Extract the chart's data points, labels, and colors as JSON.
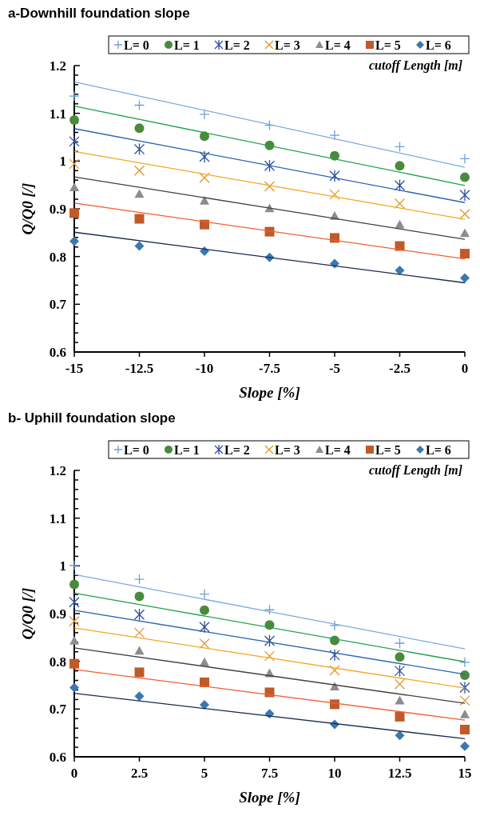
{
  "chart_data": [
    {
      "type": "scatter",
      "title": "a-Downhill foundation slope",
      "xlabel": "Slope [%]",
      "ylabel": "Q/Q0 [/]",
      "legend_title": "cutoff Length [m]",
      "legend": "top",
      "grid": false,
      "x": [
        -15,
        -12.5,
        -10,
        -7.5,
        -5,
        -2.5,
        0
      ],
      "xlim": [
        -15,
        0
      ],
      "xticks": [
        -15,
        -12.5,
        -10,
        -7.5,
        -5,
        -2.5,
        0
      ],
      "ylim": [
        0.6,
        1.2
      ],
      "yticks": [
        0.6,
        {
          "value": 0.62,
          "label": null
        },
        {
          "value": 0.64,
          "label": null
        },
        {
          "value": 0.66,
          "label": null
        },
        {
          "value": 0.68,
          "label": null
        },
        0.7,
        {
          "value": 0.72,
          "label": null
        },
        {
          "value": 0.74,
          "label": null
        },
        {
          "value": 0.76,
          "label": null
        },
        {
          "value": 0.78,
          "label": null
        },
        0.8,
        {
          "value": 0.82,
          "label": null
        },
        {
          "value": 0.84,
          "label": null
        },
        {
          "value": 0.86,
          "label": null
        },
        {
          "value": 0.88,
          "label": null
        },
        0.9,
        {
          "value": 0.92,
          "label": null
        },
        {
          "value": 0.94,
          "label": null
        },
        {
          "value": 0.96,
          "label": null
        },
        {
          "value": 0.98,
          "label": null
        },
        1,
        {
          "value": 1.02,
          "label": null
        },
        {
          "value": 1.04,
          "label": null
        },
        {
          "value": 1.06,
          "label": null
        },
        {
          "value": 1.08,
          "label": null
        },
        1.1,
        {
          "value": 1.12,
          "label": null
        },
        {
          "value": 1.14,
          "label": null
        },
        {
          "value": 1.16,
          "label": null
        },
        {
          "value": 1.18,
          "label": null
        },
        1.2
      ],
      "series": [
        {
          "name": "L= 0",
          "color": "#6fa0d8",
          "marker": "cross",
          "values": [
            1.136,
            1.117,
            1.098,
            1.075,
            1.054,
            1.03,
            1.005
          ]
        },
        {
          "name": "L= 1",
          "color": "#4a8a3a",
          "marker": "circle",
          "values": [
            1.086,
            1.069,
            1.052,
            1.033,
            1.011,
            0.99,
            0.966
          ]
        },
        {
          "name": "L= 2",
          "color": "#2e4f9a",
          "marker": "cross",
          "values": [
            1.041,
            1.025,
            1.009,
            0.99,
            0.969,
            0.949,
            0.929
          ]
        },
        {
          "name": "L= 3",
          "color": "#e0962a",
          "marker": "cross",
          "values": [
            0.994,
            0.98,
            0.965,
            0.947,
            0.93,
            0.911,
            0.889
          ]
        },
        {
          "name": "L= 4",
          "color": "#8c8c8c",
          "marker": "triangle",
          "values": [
            0.945,
            0.931,
            0.917,
            0.901,
            0.885,
            0.867,
            0.849
          ]
        },
        {
          "name": "L= 5",
          "color": "#c05a28",
          "marker": "square",
          "values": [
            0.891,
            0.879,
            0.867,
            0.852,
            0.839,
            0.822,
            0.806
          ]
        },
        {
          "name": "L= 6",
          "color": "#3a78b0",
          "marker": "diamond",
          "values": [
            0.832,
            0.822,
            0.811,
            0.798,
            0.785,
            0.771,
            0.755
          ]
        },
        {
          "type": "line",
          "color": "#7aaae0",
          "line_style": "solid",
          "x": [
            -15,
            0
          ],
          "values": [
            1.166,
            0.987
          ]
        },
        {
          "type": "line",
          "color": "#22a050",
          "line_style": "solid",
          "x": [
            -15,
            0
          ],
          "values": [
            1.115,
            0.949
          ]
        },
        {
          "type": "line",
          "color": "#2a64b0",
          "line_style": "solid",
          "x": [
            -15,
            0
          ],
          "values": [
            1.068,
            0.913
          ]
        },
        {
          "type": "line",
          "color": "#f5a623",
          "line_style": "solid",
          "x": [
            -15,
            0
          ],
          "values": [
            1.02,
            0.878
          ]
        },
        {
          "type": "line",
          "color": "#404040",
          "line_style": "solid",
          "x": [
            -15,
            0
          ],
          "values": [
            0.967,
            0.836
          ]
        },
        {
          "type": "line",
          "color": "#f06030",
          "line_style": "solid",
          "x": [
            -15,
            0
          ],
          "values": [
            0.912,
            0.795
          ]
        },
        {
          "type": "line",
          "color": "#1a2a50",
          "line_style": "solid",
          "x": [
            -15,
            0
          ],
          "values": [
            0.851,
            0.745
          ]
        }
      ]
    },
    {
      "type": "scatter",
      "title": "b- Uphill foundation slope",
      "xlabel": "Slope [%]",
      "ylabel": "Q/Q0 [/]",
      "legend_title": "cutoff Length [m]",
      "legend": "top",
      "grid": false,
      "x": [
        0,
        2.5,
        5,
        7.5,
        10,
        12.5,
        15
      ],
      "xlim": [
        0,
        15
      ],
      "xticks": [
        0,
        2.5,
        5,
        7.5,
        10,
        12.5,
        15
      ],
      "ylim": [
        0.6,
        1.2
      ],
      "yticks": [
        0.6,
        {
          "value": 0.62,
          "label": null
        },
        {
          "value": 0.64,
          "label": null
        },
        {
          "value": 0.66,
          "label": null
        },
        {
          "value": 0.68,
          "label": null
        },
        0.7,
        {
          "value": 0.72,
          "label": null
        },
        {
          "value": 0.74,
          "label": null
        },
        {
          "value": 0.76,
          "label": null
        },
        {
          "value": 0.78,
          "label": null
        },
        0.8,
        {
          "value": 0.82,
          "label": null
        },
        {
          "value": 0.84,
          "label": null
        },
        {
          "value": 0.86,
          "label": null
        },
        {
          "value": 0.88,
          "label": null
        },
        0.9,
        {
          "value": 0.92,
          "label": null
        },
        {
          "value": 0.94,
          "label": null
        },
        {
          "value": 0.96,
          "label": null
        },
        {
          "value": 0.98,
          "label": null
        },
        1,
        {
          "value": 1.02,
          "label": null
        },
        {
          "value": 1.04,
          "label": null
        },
        {
          "value": 1.06,
          "label": null
        },
        {
          "value": 1.08,
          "label": null
        },
        1.1,
        {
          "value": 1.12,
          "label": null
        },
        {
          "value": 1.14,
          "label": null
        },
        {
          "value": 1.16,
          "label": null
        },
        {
          "value": 1.18,
          "label": null
        },
        1.2
      ],
      "series": [
        {
          "name": "L= 0",
          "color": "#6fa0d8",
          "marker": "cross",
          "values": [
            1.001,
            0.972,
            0.941,
            0.908,
            0.875,
            0.838,
            0.798
          ]
        },
        {
          "name": "L= 1",
          "color": "#4a8a3a",
          "marker": "circle",
          "values": [
            0.961,
            0.936,
            0.907,
            0.876,
            0.844,
            0.809,
            0.771
          ]
        },
        {
          "name": "L= 2",
          "color": "#2e4f9a",
          "marker": "cross",
          "values": [
            0.924,
            0.898,
            0.872,
            0.843,
            0.813,
            0.78,
            0.745
          ]
        },
        {
          "name": "L= 3",
          "color": "#e0962a",
          "marker": "cross",
          "values": [
            0.884,
            0.86,
            0.837,
            0.811,
            0.781,
            0.752,
            0.718
          ]
        },
        {
          "name": "L= 4",
          "color": "#8c8c8c",
          "marker": "triangle",
          "values": [
            0.843,
            0.822,
            0.798,
            0.775,
            0.747,
            0.718,
            0.689
          ]
        },
        {
          "name": "L= 5",
          "color": "#c05a28",
          "marker": "square",
          "values": [
            0.795,
            0.777,
            0.756,
            0.735,
            0.71,
            0.684,
            0.657
          ]
        },
        {
          "name": "L= 6",
          "color": "#3a78b0",
          "marker": "diamond",
          "values": [
            0.745,
            0.727,
            0.709,
            0.69,
            0.668,
            0.645,
            0.622
          ]
        },
        {
          "type": "line",
          "color": "#7aaae0",
          "line_style": "solid",
          "x": [
            0,
            15
          ],
          "values": [
            0.982,
            0.826
          ]
        },
        {
          "type": "line",
          "color": "#22a050",
          "line_style": "solid",
          "x": [
            0,
            15
          ],
          "values": [
            0.943,
            0.799
          ]
        },
        {
          "type": "line",
          "color": "#2a64b0",
          "line_style": "solid",
          "x": [
            0,
            15
          ],
          "values": [
            0.907,
            0.773
          ]
        },
        {
          "type": "line",
          "color": "#f5a623",
          "line_style": "solid",
          "x": [
            0,
            15
          ],
          "values": [
            0.87,
            0.744
          ]
        },
        {
          "type": "line",
          "color": "#404040",
          "line_style": "solid",
          "x": [
            0,
            15
          ],
          "values": [
            0.828,
            0.712
          ]
        },
        {
          "type": "line",
          "color": "#f06030",
          "line_style": "solid",
          "x": [
            0,
            15
          ],
          "values": [
            0.783,
            0.677
          ]
        },
        {
          "type": "line",
          "color": "#1a2a50",
          "line_style": "solid",
          "x": [
            0,
            15
          ],
          "values": [
            0.733,
            0.638
          ]
        }
      ]
    }
  ]
}
